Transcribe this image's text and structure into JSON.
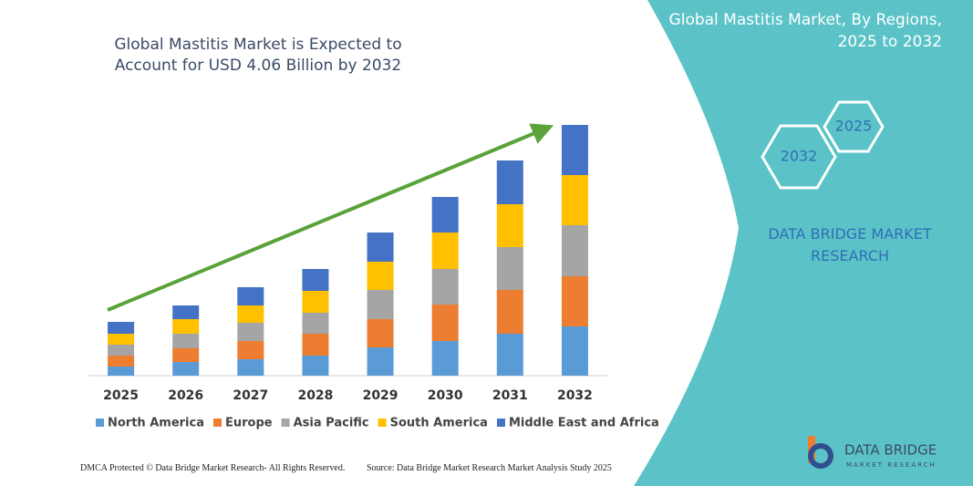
{
  "chart_data": {
    "type": "stacked_bar",
    "title": "Global Mastitis Market is Expected to Account for USD 4.06 Billion by 2032",
    "categories": [
      "2025",
      "2026",
      "2027",
      "2028",
      "2029",
      "2030",
      "2031",
      "2032"
    ],
    "series": [
      {
        "name": "North America",
        "color": "#5b9bd5",
        "values": [
          10,
          15,
          18,
          22,
          31,
          38,
          46,
          54
        ]
      },
      {
        "name": "Europe",
        "color": "#ed7d31",
        "values": [
          12,
          15,
          20,
          24,
          31,
          40,
          48,
          55
        ]
      },
      {
        "name": "Asia Pacific",
        "color": "#a5a5a5",
        "values": [
          12,
          16,
          20,
          23,
          32,
          39,
          47,
          56
        ]
      },
      {
        "name": "South America",
        "color": "#ffc000",
        "values": [
          12,
          16,
          19,
          24,
          31,
          40,
          47,
          55
        ]
      },
      {
        "name": "Middle East and Africa",
        "color": "#4472c4",
        "values": [
          13,
          15,
          20,
          24,
          32,
          39,
          48,
          55
        ]
      }
    ],
    "ylim": [
      0,
      300
    ],
    "legend": "bottom"
  },
  "side_panel": {
    "title": "Global Mastitis Market, By Regions, 2025 to 2032",
    "hexagons": [
      "2025",
      "2032"
    ],
    "brand": "DATA BRIDGE MARKET RESEARCH"
  },
  "logo": {
    "name": "DATA BRIDGE",
    "tagline": "MARKET RESEARCH"
  },
  "footer": {
    "dmca": "DMCA Protected © Data Bridge Market Research- All Rights Reserved.",
    "source": "Source: Data Bridge Market Research Market Analysis Study 2025"
  }
}
